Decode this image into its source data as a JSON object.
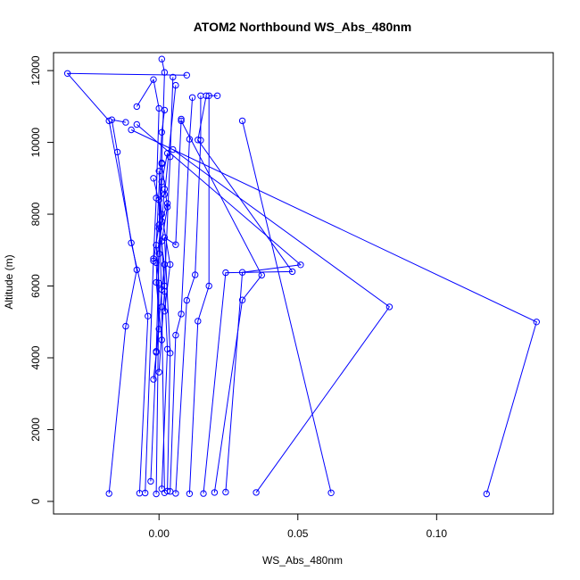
{
  "chart_data": {
    "type": "line",
    "title": "ATOM2 Northbound WS_Abs_480nm",
    "xlabel": "WS_Abs_480nm",
    "ylabel": "Altitude (m)",
    "xlim": [
      -0.038,
      0.142
    ],
    "ylim": [
      -350,
      12500
    ],
    "xticks": [
      0.0,
      0.05,
      0.1
    ],
    "xtick_labels": [
      "0.00",
      "0.05",
      "0.10"
    ],
    "yticks": [
      0,
      2000,
      4000,
      6000,
      8000,
      10000,
      12000
    ],
    "ytick_labels": [
      "0",
      "2000",
      "4000",
      "6000",
      "8000",
      "10000",
      "12000"
    ],
    "line_color": "#0000ff",
    "marker": "open-circle",
    "series": [
      {
        "x": [
          -0.018,
          -0.012,
          -0.008,
          -0.018,
          -0.033,
          0.01
        ],
        "y": [
          220,
          4880,
          6450,
          10600,
          11920,
          11870
        ]
      },
      {
        "x": [
          -0.007,
          -0.004,
          -0.01,
          -0.015,
          -0.017,
          -0.012
        ],
        "y": [
          230,
          5160,
          7200,
          9730,
          10630,
          10560
        ]
      },
      {
        "x": [
          -0.005,
          -0.002,
          -0.001,
          0.0,
          -0.002,
          -0.008
        ],
        "y": [
          235,
          6760,
          8450,
          10950,
          11750,
          11000
        ]
      },
      {
        "x": [
          -0.003,
          -0.001,
          0.001,
          0.002,
          0.001
        ],
        "y": [
          560,
          4150,
          9430,
          11950,
          12320
        ]
      },
      {
        "x": [
          -0.001,
          0.0,
          -0.001,
          0.001,
          0.002
        ],
        "y": [
          210,
          6080,
          7140,
          10280,
          10900
        ]
      },
      {
        "x": [
          0.001,
          0.003,
          0.002,
          0.004,
          0.005
        ],
        "y": [
          350,
          4240,
          6000,
          9600,
          11820
        ]
      },
      {
        "x": [
          0.002,
          0.001,
          0.0,
          0.002,
          0.006
        ],
        "y": [
          240,
          5420,
          8400,
          8550,
          11590
        ]
      },
      {
        "x": [
          0.003,
          0.004,
          0.002,
          0.006,
          0.008
        ],
        "y": [
          290,
          4130,
          7350,
          7150,
          10650
        ]
      },
      {
        "x": [
          0.004,
          0.006,
          0.008,
          0.011,
          0.012
        ],
        "y": [
          280,
          4630,
          5220,
          10090,
          11250
        ]
      },
      {
        "x": [
          0.006,
          0.01,
          0.013,
          0.015,
          0.015
        ],
        "y": [
          225,
          5600,
          6310,
          10060,
          11300
        ]
      },
      {
        "x": [
          0.011,
          0.014,
          0.018,
          0.018,
          0.021
        ],
        "y": [
          215,
          5020,
          6000,
          11300,
          11300
        ]
      },
      {
        "x": [
          0.016,
          0.024,
          0.048,
          0.014,
          0.017
        ],
        "y": [
          220,
          6370,
          6400,
          10070,
          11300
        ]
      },
      {
        "x": [
          0.02,
          0.03,
          0.037,
          0.008
        ],
        "y": [
          250,
          5610,
          6300,
          10600
        ]
      },
      {
        "x": [
          0.024,
          0.03,
          0.051,
          -0.008
        ],
        "y": [
          260,
          6380,
          6590,
          10500
        ]
      },
      {
        "x": [
          0.035,
          0.083,
          0.005
        ],
        "y": [
          250,
          5420,
          9800
        ]
      },
      {
        "x": [
          0.062,
          0.03
        ],
        "y": [
          240,
          10600
        ]
      },
      {
        "x": [
          0.118,
          0.136,
          -0.01
        ],
        "y": [
          210,
          5000,
          10350
        ]
      },
      {
        "x": [
          -0.002,
          0.0,
          -0.001,
          0.001,
          0.0
        ],
        "y": [
          3400,
          4800,
          6650,
          7800,
          9200
        ]
      },
      {
        "x": [
          0.0,
          0.002,
          0.001,
          0.003,
          0.001
        ],
        "y": [
          3600,
          5850,
          7250,
          8200,
          9400
        ]
      },
      {
        "x": [
          -0.001,
          0.001,
          0.002,
          0.0,
          0.003
        ],
        "y": [
          4180,
          5900,
          6600,
          7600,
          8300
        ]
      },
      {
        "x": [
          0.001,
          -0.001,
          0.0,
          0.002
        ],
        "y": [
          4500,
          6100,
          6900,
          8700
        ]
      },
      {
        "x": [
          0.002,
          0.004,
          0.001,
          -0.002
        ],
        "y": [
          5300,
          6600,
          8000,
          9000
        ]
      },
      {
        "x": [
          -0.002,
          0.0,
          0.001,
          0.003
        ],
        "y": [
          6700,
          7700,
          8900,
          9700
        ]
      }
    ]
  }
}
